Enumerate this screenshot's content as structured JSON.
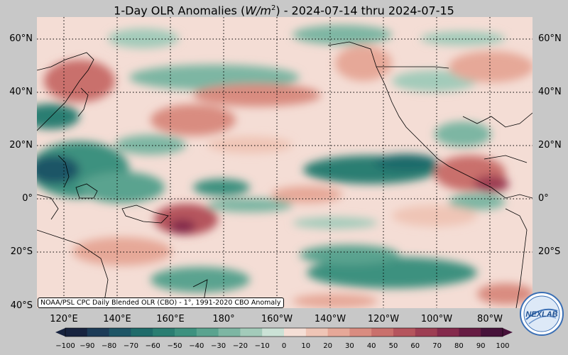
{
  "title": {
    "prefix": "1-Day OLR Anomalies (",
    "unit_base": "W/m",
    "unit_exp": "2",
    "suffix": ") - 2024-07-14 thru 2024-07-15"
  },
  "credit": "NOAA/PSL CPC Daily Blended OLR (CBO) - 1°, 1991-2020 CBO Anomaly",
  "lat_labels": [
    "60°N",
    "40°N",
    "20°N",
    "0°",
    "20°S",
    "40°S"
  ],
  "lon_labels": [
    "120°E",
    "140°E",
    "160°E",
    "180°",
    "160°W",
    "140°W",
    "120°W",
    "100°W",
    "80°W"
  ],
  "colorbar": {
    "ticks": [
      "−100",
      "−90",
      "−80",
      "−70",
      "−60",
      "−50",
      "−40",
      "−30",
      "−20",
      "−10",
      "0",
      "10",
      "20",
      "30",
      "40",
      "50",
      "60",
      "70",
      "80",
      "90",
      "100"
    ],
    "colors_negative": [
      "#17233f",
      "#1c3b57",
      "#1e5566",
      "#1f6b6a",
      "#2a7e72",
      "#3d917f",
      "#5aa38f",
      "#7db6a3",
      "#a3cbba",
      "#cbe2d6"
    ],
    "color_zero": "#f7f2ef",
    "colors_positive": [
      "#f5dfd6",
      "#efc5b6",
      "#e6a898",
      "#d98c80",
      "#c9706c",
      "#b5555d",
      "#9d3e53",
      "#842a4c",
      "#661c43",
      "#46123a"
    ]
  },
  "logo": {
    "text": "NEXLAB"
  }
}
